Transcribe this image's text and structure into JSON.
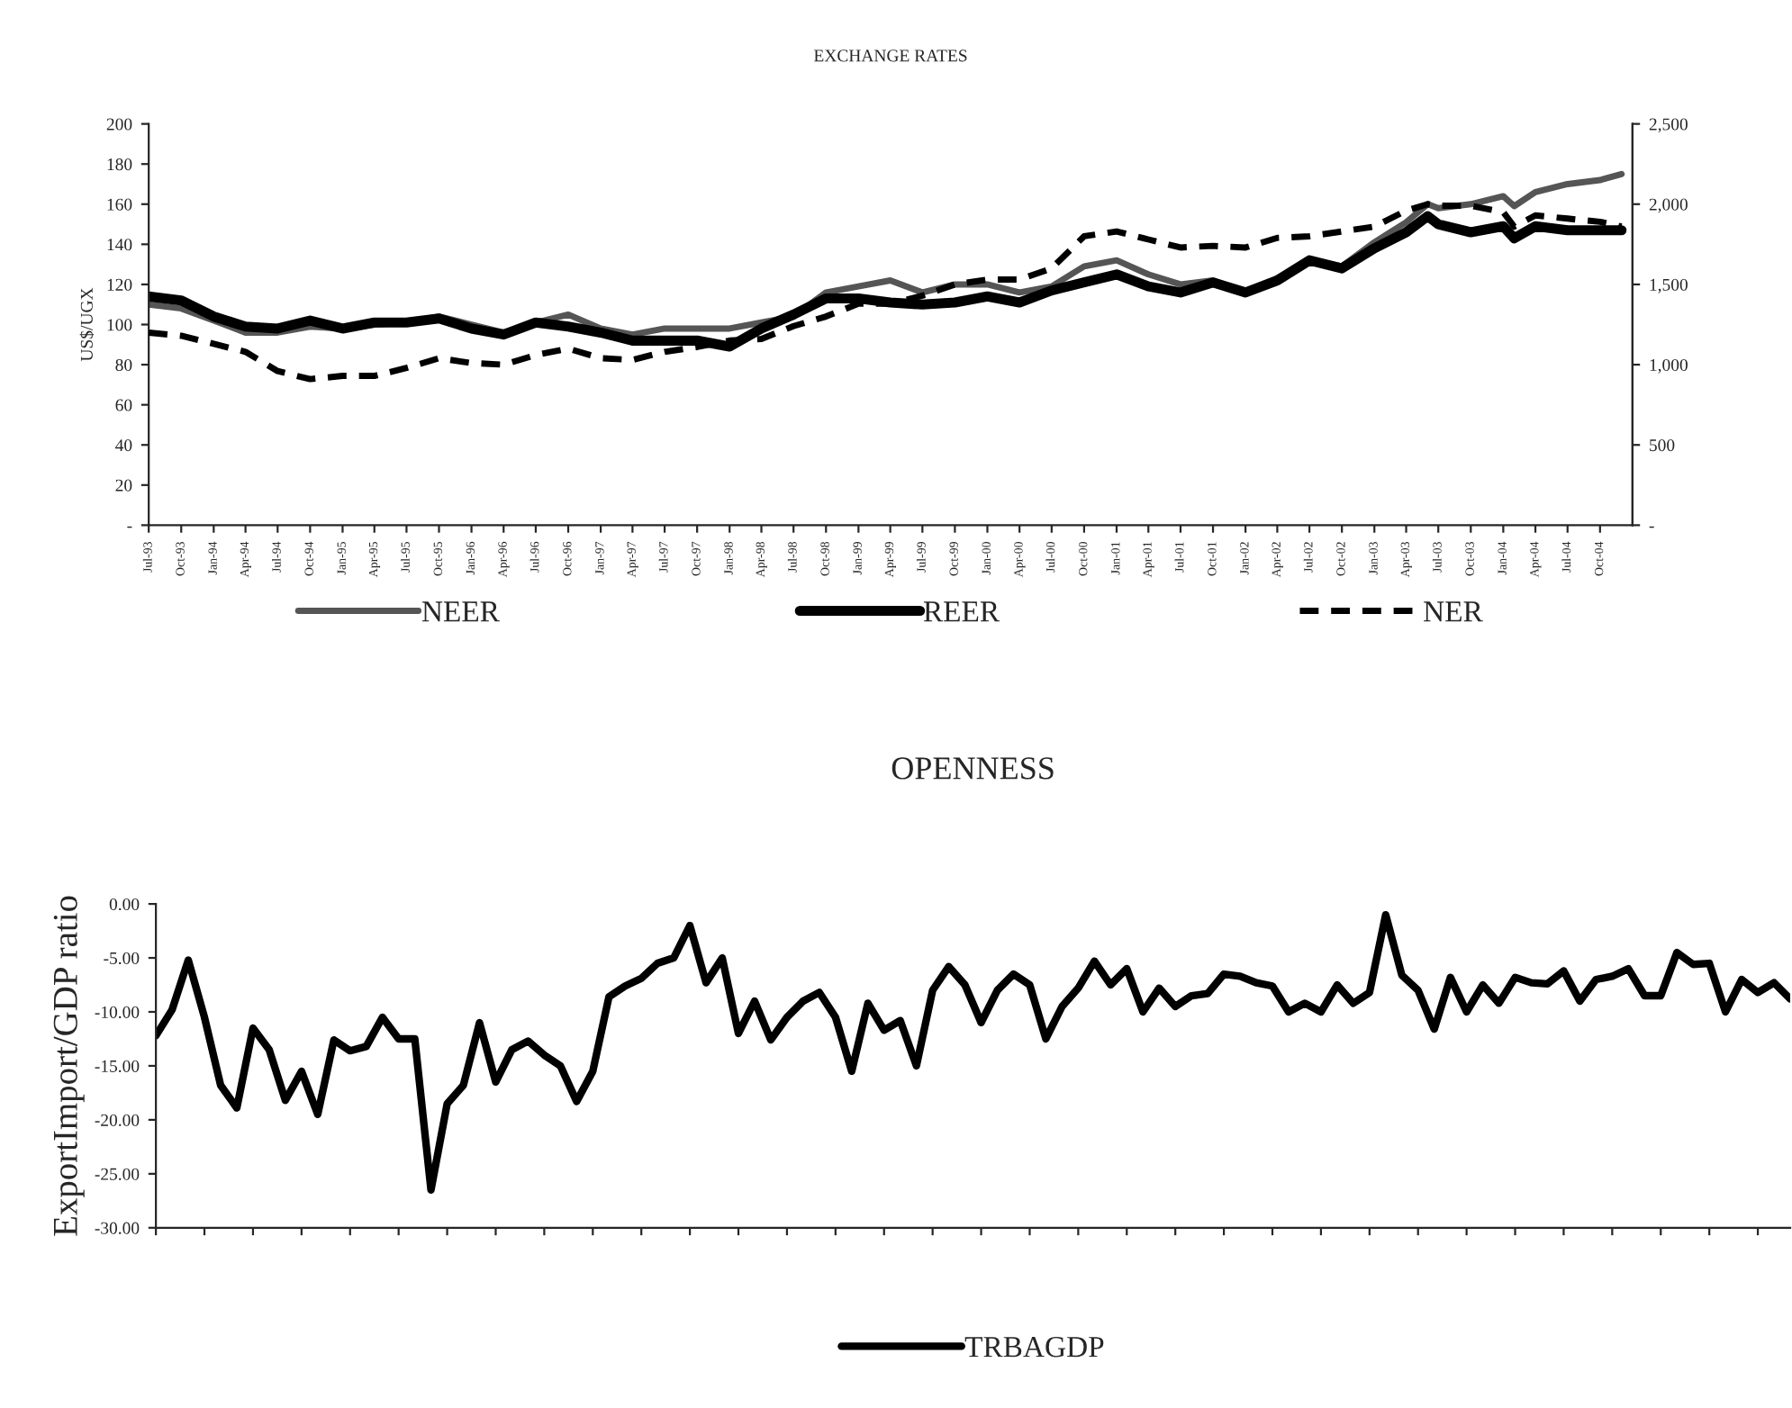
{
  "chart_data": [
    {
      "type": "line",
      "title": "EXCHANGE RATES",
      "ylabel": "US$/UGX",
      "x": [
        "1993-07",
        "1993-10",
        "1994-01",
        "1994-04",
        "1994-07",
        "1994-10",
        "1995-01",
        "1995-04",
        "1995-07",
        "1995-10",
        "1996-01",
        "1996-04",
        "1996-07",
        "1996-10",
        "1997-01",
        "1997-04",
        "1997-07",
        "1997-10",
        "1998-01",
        "1998-04",
        "1998-07",
        "1998-10",
        "1999-01",
        "1999-04",
        "1999-07",
        "1999-10",
        "2000-01",
        "2000-04",
        "2000-07",
        "2000-10",
        "2001-01",
        "2001-04",
        "2001-07",
        "2001-10",
        "2002-01",
        "2002-04",
        "2002-07",
        "2002-10",
        "2003-01",
        "2003-04",
        "2003-06",
        "2003-07",
        "2003-10",
        "2004-01",
        "2004-02",
        "2004-04",
        "2004-07",
        "2004-10",
        "2004-12"
      ],
      "series": [
        {
          "name": "NEER",
          "color": "#555555",
          "line_style": "solid",
          "values": [
            110,
            108,
            102,
            96,
            96,
            99,
            98,
            100,
            101,
            104,
            100,
            96,
            101,
            105,
            98,
            95,
            98,
            98,
            98,
            101,
            104,
            116,
            119,
            122,
            116,
            120,
            120,
            116,
            119,
            129,
            132,
            125,
            120,
            122,
            116,
            123,
            132,
            129,
            141,
            151,
            160,
            158,
            160,
            164,
            159,
            166,
            170,
            172,
            175
          ]
        },
        {
          "name": "REER",
          "color": "#000000",
          "line_style": "solid",
          "values": [
            114,
            112,
            104,
            99,
            98,
            102,
            98,
            101,
            101,
            103,
            98,
            95,
            101,
            99,
            96,
            92,
            92,
            92,
            89,
            98,
            105,
            113,
            113,
            111,
            110,
            111,
            114,
            111,
            117,
            121,
            125,
            119,
            116,
            121,
            116,
            122,
            132,
            128,
            138,
            146,
            154,
            150,
            146,
            149,
            143,
            149,
            147,
            147,
            147
          ]
        },
        {
          "name": "NER",
          "color": "#000000",
          "line_style": "dashed",
          "axis": "y2",
          "values": [
            1200,
            1180,
            1130,
            1080,
            960,
            910,
            930,
            930,
            980,
            1040,
            1010,
            1000,
            1060,
            1100,
            1040,
            1030,
            1080,
            1110,
            1150,
            1160,
            1240,
            1300,
            1380,
            1380,
            1430,
            1500,
            1530,
            1530,
            1600,
            1800,
            1830,
            1780,
            1730,
            1740,
            1730,
            1790,
            1800,
            1830,
            1860,
            1960,
            2000,
            1990,
            1990,
            1950,
            1860,
            1930,
            1910,
            1890,
            1860
          ]
        }
      ],
      "xlim": [
        "1993-07",
        "2005-01"
      ],
      "xticks": [
        {
          "value": "1993-07",
          "label": "Jul-93"
        },
        {
          "value": "1993-10",
          "label": "Oct-93"
        },
        {
          "value": "1994-01",
          "label": "Jan-94"
        },
        {
          "value": "1994-04",
          "label": "Apr-94"
        },
        {
          "value": "1994-07",
          "label": "Jul-94"
        },
        {
          "value": "1994-10",
          "label": "Oct-94"
        },
        {
          "value": "1995-01",
          "label": "Jan-95"
        },
        {
          "value": "1995-04",
          "label": "Apr-95"
        },
        {
          "value": "1995-07",
          "label": "Jul-95"
        },
        {
          "value": "1995-10",
          "label": "Oct-95"
        },
        {
          "value": "1996-01",
          "label": "Jan-96"
        },
        {
          "value": "1996-04",
          "label": "Apr-96"
        },
        {
          "value": "1996-07",
          "label": "Jul-96"
        },
        {
          "value": "1996-10",
          "label": "Oct-96"
        },
        {
          "value": "1997-01",
          "label": "Jan-97"
        },
        {
          "value": "1997-04",
          "label": "Apr-97"
        },
        {
          "value": "1997-07",
          "label": "Jul-97"
        },
        {
          "value": "1997-10",
          "label": "Oct-97"
        },
        {
          "value": "1998-01",
          "label": "Jan-98"
        },
        {
          "value": "1998-04",
          "label": "Apr-98"
        },
        {
          "value": "1998-07",
          "label": "Jul-98"
        },
        {
          "value": "1998-10",
          "label": "Oct-98"
        },
        {
          "value": "1999-01",
          "label": "Jan-99"
        },
        {
          "value": "1999-04",
          "label": "Apr-99"
        },
        {
          "value": "1999-07",
          "label": "Jul-99"
        },
        {
          "value": "1999-10",
          "label": "Oct-99"
        },
        {
          "value": "2000-01",
          "label": "Jan-00"
        },
        {
          "value": "2000-04",
          "label": "Apr-00"
        },
        {
          "value": "2000-07",
          "label": "Jul-00"
        },
        {
          "value": "2000-10",
          "label": "Oct-00"
        },
        {
          "value": "2001-01",
          "label": "Jan-01"
        },
        {
          "value": "2001-04",
          "label": "Apr-01"
        },
        {
          "value": "2001-07",
          "label": "Jul-01"
        },
        {
          "value": "2001-10",
          "label": "Oct-01"
        },
        {
          "value": "2002-01",
          "label": "Jan-02"
        },
        {
          "value": "2002-04",
          "label": "Apr-02"
        },
        {
          "value": "2002-07",
          "label": "Jul-02"
        },
        {
          "value": "2002-10",
          "label": "Oct-02"
        },
        {
          "value": "2003-01",
          "label": "Jan-03"
        },
        {
          "value": "2003-04",
          "label": "Apr-03"
        },
        {
          "value": "2003-07",
          "label": "Jul-03"
        },
        {
          "value": "2003-10",
          "label": "Oct-03"
        },
        {
          "value": "2004-01",
          "label": "Jan-04"
        },
        {
          "value": "2004-04",
          "label": "Apr-04"
        },
        {
          "value": "2004-07",
          "label": "Jul-04"
        },
        {
          "value": "2004-10",
          "label": "Oct-04"
        }
      ],
      "ylim": [
        0,
        200
      ],
      "yticks": [
        {
          "value": 0,
          "label": "-"
        },
        20,
        40,
        60,
        80,
        100,
        120,
        140,
        160,
        180,
        200
      ],
      "y2lim": [
        0,
        2500
      ],
      "y2ticks": [
        {
          "value": 0,
          "label": "-"
        },
        500,
        {
          "value": 1000,
          "label": "1,000"
        },
        {
          "value": 1500,
          "label": "1,500"
        },
        {
          "value": 2000,
          "label": "2,000"
        },
        {
          "value": 2500,
          "label": "2,500"
        }
      ],
      "legend": "bottom"
    },
    {
      "type": "line",
      "title": "OPENNESS",
      "ylabel": "ExportImport/GDP ratio",
      "categories": [
        null,
        null,
        null,
        null,
        null,
        null,
        null,
        null,
        null,
        null,
        null,
        null,
        null,
        null,
        null,
        null,
        null,
        null,
        null,
        null,
        null,
        null,
        null,
        null,
        null,
        null,
        null,
        null,
        null,
        null,
        null,
        null,
        null,
        null,
        null,
        null,
        null,
        null,
        null,
        null,
        null,
        null,
        null,
        null,
        null,
        null,
        null,
        null,
        null,
        null,
        null,
        null,
        null,
        null,
        null,
        null,
        null,
        null,
        null,
        null,
        null,
        null,
        null,
        null,
        null,
        null,
        null,
        null,
        null,
        null,
        null,
        null,
        null,
        null,
        null,
        null,
        null,
        null,
        null,
        null,
        null,
        null,
        null,
        null,
        null,
        null,
        null,
        null,
        null,
        null,
        null,
        null,
        null,
        null,
        null,
        null,
        null,
        null,
        null,
        null,
        null,
        null
      ],
      "series": [
        {
          "name": "TRBAGDP",
          "color": "#000000",
          "values": [
            -12.2,
            -9.8,
            -5.2,
            -10.5,
            -16.8,
            -18.9,
            -11.5,
            -13.5,
            -18.2,
            -15.5,
            -19.5,
            -12.6,
            -13.6,
            -13.2,
            -10.5,
            -12.5,
            -12.5,
            -26.5,
            -18.5,
            -16.8,
            -11,
            -16.5,
            -13.5,
            -12.7,
            -14,
            -15,
            -18.3,
            -15.5,
            -8.6,
            -7.6,
            -6.9,
            -5.5,
            -5,
            -2,
            -7.3,
            -5,
            -12,
            -9,
            -12.6,
            -10.5,
            -9,
            -8.2,
            -10.5,
            -15.5,
            -9.2,
            -11.7,
            -10.8,
            -15,
            -8,
            -5.8,
            -7.5,
            -11,
            -8,
            -6.5,
            -7.5,
            -12.5,
            -9.5,
            -7.8,
            -5.3,
            -7.5,
            -6,
            -10,
            -7.8,
            -9.5,
            -8.5,
            -8.3,
            -6.5,
            -6.7,
            -7.3,
            -7.6,
            -10,
            -9.2,
            -10,
            -7.5,
            -9.2,
            -8.2,
            -1,
            -6.6,
            -8,
            -11.6,
            -6.8,
            -10,
            -7.5,
            -9.2,
            -6.8,
            -7.3,
            -7.4,
            -6.2,
            -9,
            -7,
            -6.7,
            -6,
            -8.5,
            -8.5,
            -4.5,
            -5.6,
            -5.5,
            -10,
            -7,
            -8.2,
            -7.3,
            -8.8
          ]
        }
      ],
      "ylim": [
        -30,
        0
      ],
      "yticks": [
        {
          "value": -30,
          "label": "-30.00"
        },
        {
          "value": -25,
          "label": "-25.00"
        },
        {
          "value": -20,
          "label": "-20.00"
        },
        {
          "value": -15,
          "label": "-15.00"
        },
        {
          "value": -10,
          "label": "-10.00"
        },
        {
          "value": -5,
          "label": "-5.00"
        },
        {
          "value": 0,
          "label": "0.00"
        }
      ],
      "tick_labels": "y",
      "legend": "bottom"
    }
  ]
}
